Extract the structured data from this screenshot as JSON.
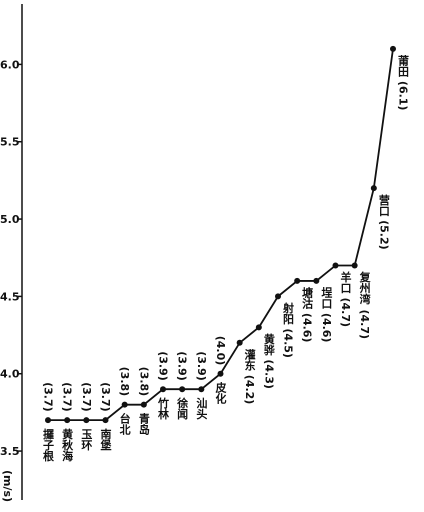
{
  "chart_data": {
    "type": "line",
    "y_label": "(m/s)",
    "categories": [
      "攞子根",
      "黄秋海",
      "玉环",
      "南堡",
      "台北",
      "青岛",
      "竹林",
      "徐闻",
      "汕头",
      "皮化",
      "灌东",
      "黄骅",
      "射阳",
      "塘沽",
      "埕口",
      "羊口",
      "复州湾",
      "营口",
      "莆田"
    ],
    "values": [
      3.7,
      3.7,
      3.7,
      3.7,
      3.8,
      3.8,
      3.9,
      3.9,
      3.9,
      4.0,
      4.2,
      4.3,
      4.5,
      4.6,
      4.6,
      4.7,
      4.7,
      5.2,
      6.1
    ],
    "value_labels": [
      "(3.7)",
      "(3.7)",
      "(3.7)",
      "(3.7)",
      "(3.8)",
      "(3.8)",
      "(3.9)",
      "(3.9)",
      "(3.9)",
      "(4.0)",
      "(4.2)",
      "(4.3)",
      "(4.5)",
      "(4.6)",
      "(4.6)",
      "(4.7)",
      "(4.7)",
      "(5.2)",
      "(6.1)"
    ],
    "color": "#111111",
    "ylim": [
      3.3,
      6.3
    ],
    "yticks": [
      3.5,
      {
        "value": 4,
        "label": "4.0"
      },
      4.5,
      {
        "value": 5,
        "label": "5.0"
      },
      5.5,
      {
        "value": 6,
        "label": "6.0"
      }
    ]
  }
}
